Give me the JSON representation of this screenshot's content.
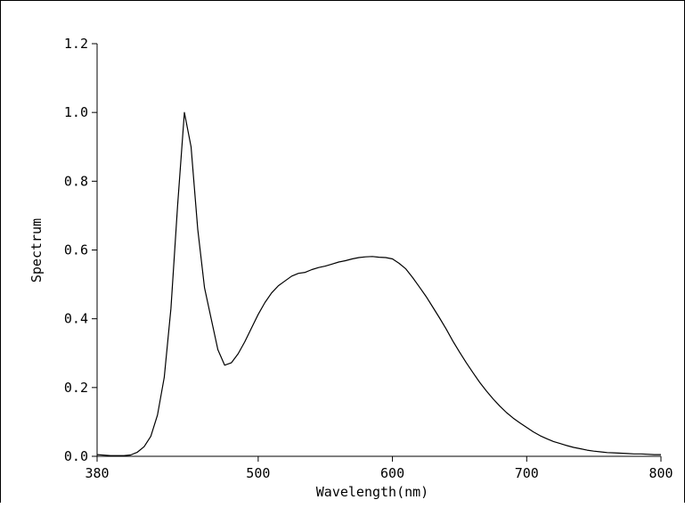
{
  "chart_data": {
    "type": "line",
    "xlabel": "Wavelength(nm)",
    "ylabel": "Spectrum",
    "xlim": [
      380,
      800
    ],
    "ylim": [
      0,
      1.2
    ],
    "x_ticks": [
      380,
      500,
      600,
      700,
      800
    ],
    "x_tick_labels": [
      "380",
      "500",
      "600",
      "700",
      "800"
    ],
    "y_ticks": [
      0,
      0.2,
      0.4,
      0.6,
      0.8,
      1.0,
      1.2
    ],
    "y_tick_labels": [
      "0.0",
      "0.2",
      "0.4",
      "0.6",
      "0.8",
      "1.0",
      "1.2"
    ],
    "grid": false,
    "colors": {
      "line": "#000000",
      "axes": "#000000"
    },
    "series": [
      {
        "x": [
          380,
          390,
          400,
          405,
          410,
          415,
          420,
          425,
          430,
          435,
          440,
          445,
          450,
          455,
          460,
          465,
          470,
          475,
          480,
          485,
          490,
          495,
          500,
          505,
          510,
          515,
          520,
          525,
          530,
          535,
          540,
          545,
          550,
          555,
          560,
          565,
          570,
          575,
          580,
          585,
          590,
          595,
          600,
          605,
          610,
          615,
          620,
          625,
          630,
          635,
          640,
          645,
          650,
          655,
          660,
          665,
          670,
          675,
          680,
          685,
          690,
          695,
          700,
          705,
          710,
          715,
          720,
          725,
          730,
          735,
          740,
          745,
          750,
          755,
          760,
          765,
          770,
          775,
          780,
          785,
          790,
          795,
          800
        ],
        "y": [
          0.005,
          0.002,
          0.002,
          0.004,
          0.012,
          0.028,
          0.058,
          0.12,
          0.23,
          0.43,
          0.73,
          1.0,
          0.9,
          0.66,
          0.49,
          0.4,
          0.31,
          0.265,
          0.272,
          0.298,
          0.333,
          0.373,
          0.413,
          0.447,
          0.475,
          0.496,
          0.51,
          0.524,
          0.532,
          0.535,
          0.543,
          0.549,
          0.553,
          0.559,
          0.565,
          0.569,
          0.574,
          0.578,
          0.58,
          0.581,
          0.579,
          0.578,
          0.574,
          0.561,
          0.545,
          0.52,
          0.493,
          0.465,
          0.434,
          0.403,
          0.37,
          0.335,
          0.303,
          0.272,
          0.243,
          0.215,
          0.19,
          0.167,
          0.146,
          0.127,
          0.111,
          0.097,
          0.084,
          0.071,
          0.06,
          0.051,
          0.043,
          0.037,
          0.031,
          0.026,
          0.022,
          0.018,
          0.015,
          0.013,
          0.011,
          0.01,
          0.009,
          0.008,
          0.007,
          0.007,
          0.006,
          0.005,
          0.005
        ]
      }
    ]
  }
}
